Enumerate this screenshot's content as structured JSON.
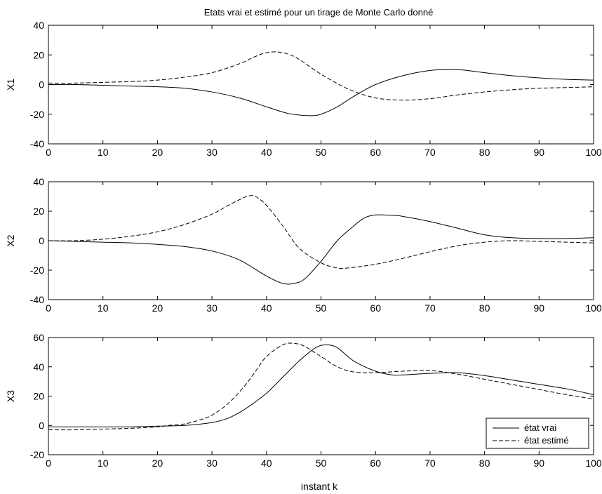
{
  "figure": {
    "title": "Etats vrai et estimé pour un tirage de Monte Carlo donné",
    "xlabel": "instant k"
  },
  "legend": {
    "placement": "bottom-right",
    "entries": [
      {
        "label": "état vrai",
        "style": "solid"
      },
      {
        "label": "état estimé",
        "style": "dashed"
      }
    ]
  },
  "chart_data": [
    {
      "type": "line",
      "ylabel": "X1",
      "xlim": [
        0,
        100
      ],
      "ylim": [
        -40,
        40
      ],
      "xticks": [
        0,
        10,
        20,
        30,
        40,
        50,
        60,
        70,
        80,
        90,
        100
      ],
      "yticks": [
        -40,
        -20,
        0,
        20,
        40
      ],
      "series": [
        {
          "style": "solid",
          "x": [
            0,
            5,
            10,
            15,
            20,
            25,
            30,
            35,
            40,
            44,
            48,
            50,
            53,
            56,
            60,
            65,
            70,
            73,
            76,
            80,
            85,
            90,
            95,
            100
          ],
          "y": [
            0,
            0,
            -0.5,
            -1,
            -1.5,
            -2.5,
            -5,
            -9,
            -15,
            -19.5,
            -21,
            -20,
            -15,
            -8,
            0,
            6,
            9.5,
            10,
            9.8,
            8,
            6,
            4.5,
            3.5,
            3
          ]
        },
        {
          "style": "dashed",
          "x": [
            0,
            5,
            10,
            15,
            20,
            25,
            30,
            35,
            38,
            40,
            42,
            44,
            46,
            50,
            55,
            60,
            65,
            70,
            75,
            80,
            85,
            90,
            95,
            100
          ],
          "y": [
            1,
            1,
            1.5,
            2,
            3,
            5,
            8,
            14,
            19,
            21.5,
            22,
            20.5,
            17,
            7,
            -3,
            -9,
            -10.5,
            -9.5,
            -7,
            -5,
            -3.5,
            -2.5,
            -2,
            -1.5
          ]
        }
      ]
    },
    {
      "type": "line",
      "ylabel": "X2",
      "xlim": [
        0,
        100
      ],
      "ylim": [
        -40,
        40
      ],
      "xticks": [
        0,
        10,
        20,
        30,
        40,
        50,
        60,
        70,
        80,
        90,
        100
      ],
      "yticks": [
        -40,
        -20,
        0,
        20,
        40
      ],
      "series": [
        {
          "style": "solid",
          "x": [
            0,
            5,
            10,
            15,
            20,
            25,
            30,
            35,
            40,
            43,
            45,
            47,
            50,
            53,
            56,
            58,
            60,
            63,
            65,
            70,
            75,
            80,
            85,
            90,
            95,
            100
          ],
          "y": [
            0,
            -0.5,
            -1,
            -1.5,
            -2.5,
            -4,
            -7,
            -13,
            -24,
            -29,
            -29,
            -26,
            -14,
            0,
            10,
            15.5,
            17.5,
            17.2,
            16.5,
            13,
            8.5,
            4,
            2,
            1.5,
            1.5,
            2
          ]
        },
        {
          "style": "dashed",
          "x": [
            0,
            5,
            10,
            15,
            20,
            25,
            30,
            33,
            36,
            37,
            38,
            40,
            43,
            46,
            50,
            53,
            55,
            60,
            65,
            70,
            75,
            80,
            85,
            90,
            95,
            100
          ],
          "y": [
            0,
            0,
            1,
            3,
            6,
            11,
            18,
            24,
            29.5,
            30.5,
            30,
            24,
            10,
            -5,
            -15,
            -18.5,
            -18.5,
            -16,
            -12,
            -7.5,
            -3.5,
            -1,
            0,
            -0.5,
            -1,
            -1.5
          ]
        }
      ]
    },
    {
      "type": "line",
      "ylabel": "X3",
      "xlim": [
        0,
        100
      ],
      "ylim": [
        -20,
        60
      ],
      "xticks": [
        0,
        10,
        20,
        30,
        40,
        50,
        60,
        70,
        80,
        90,
        100
      ],
      "yticks": [
        -20,
        0,
        20,
        40,
        60
      ],
      "series": [
        {
          "style": "solid",
          "x": [
            0,
            5,
            10,
            15,
            20,
            25,
            30,
            33,
            36,
            40,
            43,
            46,
            49,
            51,
            53,
            56,
            60,
            63,
            65,
            70,
            75,
            80,
            85,
            90,
            95,
            100
          ],
          "y": [
            -1,
            -1,
            -1,
            -1,
            -0.5,
            0,
            2,
            5,
            11,
            22,
            33,
            44,
            53,
            55,
            53,
            44,
            37,
            34.5,
            34.5,
            35.5,
            36,
            34,
            31,
            28,
            25,
            21
          ]
        },
        {
          "style": "dashed",
          "x": [
            0,
            5,
            10,
            15,
            20,
            22,
            25,
            28,
            30,
            33,
            36,
            38,
            40,
            43,
            45,
            47,
            50,
            53,
            56,
            60,
            65,
            70,
            75,
            80,
            85,
            90,
            95,
            100
          ],
          "y": [
            -3,
            -3,
            -2.5,
            -2,
            -1,
            0,
            1,
            4,
            7,
            15,
            27,
            37,
            47,
            55,
            56,
            54,
            47,
            40,
            36.5,
            36,
            37,
            37.5,
            35,
            31.5,
            28,
            24.5,
            21,
            18
          ]
        }
      ]
    }
  ]
}
